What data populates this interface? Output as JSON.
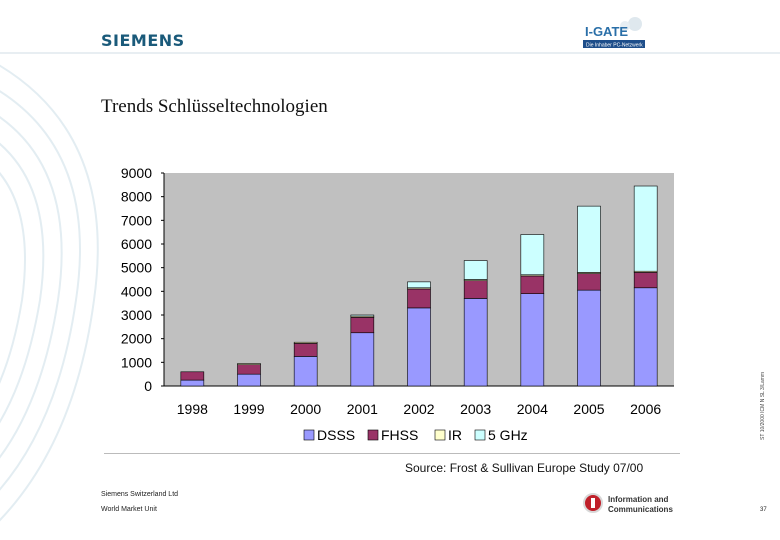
{
  "header": {
    "brand": "SIEMENS",
    "logo_title": "I-GATE",
    "logo_subtitle": "Die Inhaber PC-Netzwerk"
  },
  "slide": {
    "title": "Trends Schlüsseltechnologien",
    "source": "Source: Frost & Sullivan Europe Study 07/00",
    "side_code": "ST 10/2000 ICM N SL 3/Lamm"
  },
  "footer": {
    "company": "Siemens Switzerland Ltd",
    "unit": "World Market Unit",
    "division_line1": "Information and",
    "division_line2": "Communications",
    "page": "37"
  },
  "colors": {
    "DSSS": "#9999ff",
    "FHSS": "#993366",
    "IR": "#ffffcc",
    "5 GHz": "#ccffff",
    "plot_bg": "#c0c0c0"
  },
  "chart_data": {
    "type": "bar",
    "stacked": true,
    "title": "",
    "xlabel": "",
    "ylabel": "",
    "categories": [
      "1998",
      "1999",
      "2000",
      "2001",
      "2002",
      "2003",
      "2004",
      "2005",
      "2006"
    ],
    "series": [
      {
        "name": "DSSS",
        "values": [
          250,
          500,
          1250,
          2250,
          3300,
          3700,
          3900,
          4050,
          4150
        ]
      },
      {
        "name": "FHSS",
        "values": [
          350,
          400,
          550,
          650,
          800,
          750,
          750,
          700,
          650
        ]
      },
      {
        "name": "IR",
        "values": [
          0,
          50,
          50,
          50,
          50,
          50,
          50,
          50,
          50
        ]
      },
      {
        "name": "5 GHz",
        "values": [
          0,
          0,
          0,
          50,
          250,
          800,
          1700,
          2800,
          3600
        ]
      }
    ],
    "ylim": [
      0,
      9000
    ],
    "yticks": [
      "0",
      "1000",
      "2000",
      "3000",
      "4000",
      "5000",
      "6000",
      "7000",
      "8000",
      "9000"
    ],
    "legend": "bottom-center",
    "grid": false
  }
}
